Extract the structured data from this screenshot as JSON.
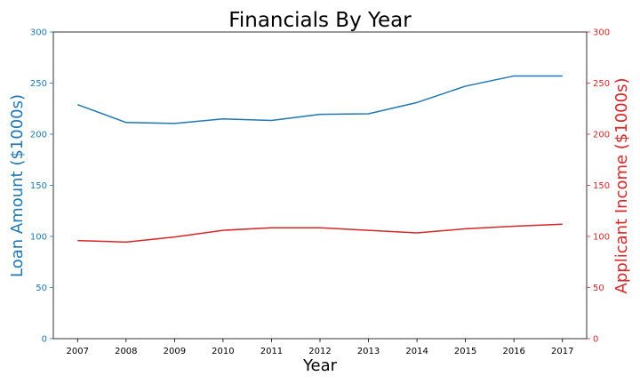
{
  "chart_data": {
    "type": "line",
    "title": "Financials By Year",
    "xlabel": "Year",
    "ylabel_left": "Loan Amount ($1000s)",
    "ylabel_right": "Applicant Income ($1000s)",
    "x": [
      2007,
      2008,
      2009,
      2010,
      2011,
      2012,
      2013,
      2014,
      2015,
      2016,
      2017
    ],
    "ylim_left": [
      0,
      300
    ],
    "ylim_right": [
      0,
      300
    ],
    "yticks": [
      0,
      50,
      100,
      150,
      200,
      250,
      300
    ],
    "grid": false,
    "series": [
      {
        "axis": "left",
        "color": "#1f77b4",
        "values": [
          229,
          211.5,
          210.5,
          215,
          213.5,
          219.5,
          220,
          231,
          247,
          257,
          257
        ]
      },
      {
        "axis": "right",
        "color": "#d62728",
        "values": [
          96,
          94.5,
          99.5,
          106,
          108.5,
          108.5,
          106,
          103.5,
          107.5,
          110,
          112
        ]
      }
    ]
  }
}
